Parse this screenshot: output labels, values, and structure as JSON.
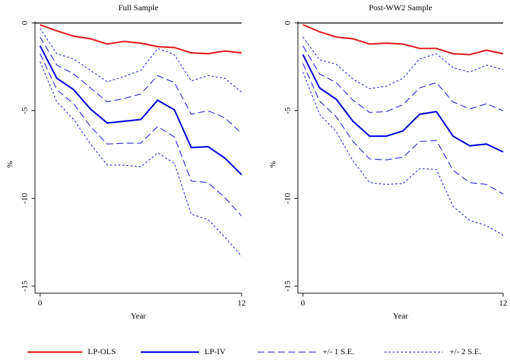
{
  "chart_data": [
    {
      "type": "line",
      "title": "Full Sample",
      "xlabel": "Year",
      "ylabel": "%",
      "x": [
        0,
        1,
        2,
        3,
        4,
        5,
        6,
        7,
        8,
        9,
        10,
        11,
        12
      ],
      "xlim": [
        -0.3,
        12
      ],
      "ylim": [
        -15.4,
        0.1
      ],
      "xticks": [
        0,
        12
      ],
      "yticks": [
        0,
        -5,
        -10,
        -15
      ],
      "hline": 0,
      "series": [
        {
          "name": "LP-OLS",
          "color": "#e41a1c",
          "style": "solid",
          "values": [
            -0.1,
            -0.45,
            -0.75,
            -0.9,
            -1.2,
            -1.05,
            -1.15,
            -1.35,
            -1.4,
            -1.7,
            -1.75,
            -1.6,
            -1.7
          ]
        },
        {
          "name": "LP-IV",
          "color": "#0000e0",
          "style": "solid",
          "values": [
            -1.3,
            -3.15,
            -3.8,
            -4.9,
            -5.7,
            -5.6,
            -5.5,
            -4.4,
            -4.95,
            -7.1,
            -7.05,
            -7.7,
            -8.65
          ]
        },
        {
          "name": "+/- 1 S.E.",
          "color": "#0000e0",
          "style": "dashed",
          "upper": [
            -0.8,
            -2.4,
            -2.9,
            -3.7,
            -4.5,
            -4.3,
            -4.05,
            -3.0,
            -3.4,
            -5.2,
            -5.0,
            -5.4,
            -6.3
          ],
          "lower": [
            -1.75,
            -3.8,
            -4.6,
            -5.9,
            -6.9,
            -6.85,
            -6.85,
            -5.9,
            -6.5,
            -9.0,
            -9.1,
            -9.95,
            -11.0
          ]
        },
        {
          "name": "+/- 2 S.E.",
          "color": "#0000e0",
          "style": "dotted",
          "upper": [
            -0.3,
            -1.75,
            -2.05,
            -2.7,
            -3.35,
            -3.05,
            -2.7,
            -1.45,
            -1.8,
            -3.3,
            -3.0,
            -3.15,
            -3.95
          ],
          "lower": [
            -2.2,
            -4.5,
            -5.5,
            -6.9,
            -8.1,
            -8.1,
            -8.2,
            -7.4,
            -8.0,
            -10.9,
            -11.2,
            -12.2,
            -13.3
          ]
        }
      ]
    },
    {
      "type": "line",
      "title": "Post-WW2 Sample",
      "xlabel": "Year",
      "ylabel": "%",
      "x": [
        0,
        1,
        2,
        3,
        4,
        5,
        6,
        7,
        8,
        9,
        10,
        11,
        12
      ],
      "xlim": [
        -0.3,
        12
      ],
      "ylim": [
        -15.4,
        0.1
      ],
      "xticks": [
        0,
        12
      ],
      "yticks": [
        0,
        -5,
        -10,
        -15
      ],
      "hline": 0,
      "series": [
        {
          "name": "LP-OLS",
          "color": "#e41a1c",
          "style": "solid",
          "values": [
            -0.1,
            -0.5,
            -0.8,
            -0.9,
            -1.2,
            -1.15,
            -1.2,
            -1.45,
            -1.45,
            -1.75,
            -1.8,
            -1.55,
            -1.75
          ]
        },
        {
          "name": "LP-IV",
          "color": "#0000e0",
          "style": "solid",
          "values": [
            -1.8,
            -3.7,
            -4.35,
            -5.6,
            -6.45,
            -6.45,
            -6.15,
            -5.2,
            -5.05,
            -6.45,
            -7.0,
            -6.9,
            -7.35
          ]
        },
        {
          "name": "+/- 1 S.E.",
          "color": "#0000e0",
          "style": "dashed",
          "upper": [
            -1.3,
            -2.9,
            -3.4,
            -4.4,
            -5.1,
            -5.05,
            -4.65,
            -3.7,
            -3.4,
            -4.5,
            -4.9,
            -4.6,
            -5.0
          ],
          "lower": [
            -2.3,
            -4.45,
            -5.35,
            -6.75,
            -7.75,
            -7.8,
            -7.65,
            -6.75,
            -6.7,
            -8.4,
            -9.1,
            -9.2,
            -9.75
          ]
        },
        {
          "name": "+/- 2 S.E.",
          "color": "#0000e0",
          "style": "dotted",
          "upper": [
            -0.8,
            -2.1,
            -2.35,
            -3.2,
            -3.75,
            -3.6,
            -3.15,
            -2.05,
            -1.75,
            -2.55,
            -2.8,
            -2.4,
            -2.65
          ],
          "lower": [
            -2.8,
            -5.2,
            -6.2,
            -7.85,
            -9.1,
            -9.2,
            -9.15,
            -8.3,
            -8.35,
            -10.45,
            -11.25,
            -11.55,
            -12.1
          ]
        }
      ]
    }
  ]
}
